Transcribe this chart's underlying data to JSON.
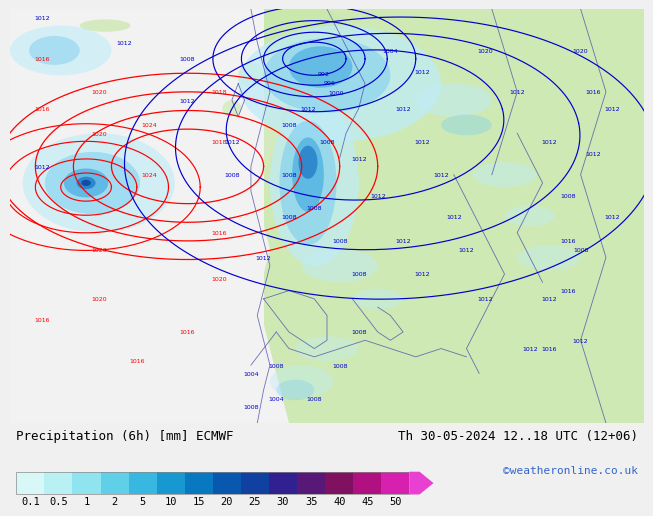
{
  "title_left": "Precipitation (6h) [mm] ECMWF",
  "title_right": "Th 30-05-2024 12..18 UTC (12+06)",
  "credit": "©weatheronline.co.uk",
  "colorbar_values": [
    "0.1",
    "0.5",
    "1",
    "2",
    "5",
    "10",
    "15",
    "20",
    "25",
    "30",
    "35",
    "40",
    "45",
    "50"
  ],
  "colorbar_colors": [
    "#d8f8f8",
    "#b8f0f4",
    "#90e4f0",
    "#60d0e8",
    "#38b8e0",
    "#1898d0",
    "#0878c0",
    "#0858b0",
    "#1040a0",
    "#302090",
    "#581878",
    "#801060",
    "#b01080",
    "#d820b0"
  ],
  "arrow_color": "#e840d0",
  "bg_color": "#f0f0f0",
  "land_color": "#c8e8a8",
  "sea_color": "#f2f2f2",
  "precip_light": "#c0ecf8",
  "precip_mid": "#80d0f0",
  "precip_dark": "#40a8e0",
  "precip_deep": "#1870c0",
  "precip_darkest": "#0840a0",
  "title_fontsize": 9,
  "credit_fontsize": 8,
  "colorbar_label_fontsize": 7.5
}
